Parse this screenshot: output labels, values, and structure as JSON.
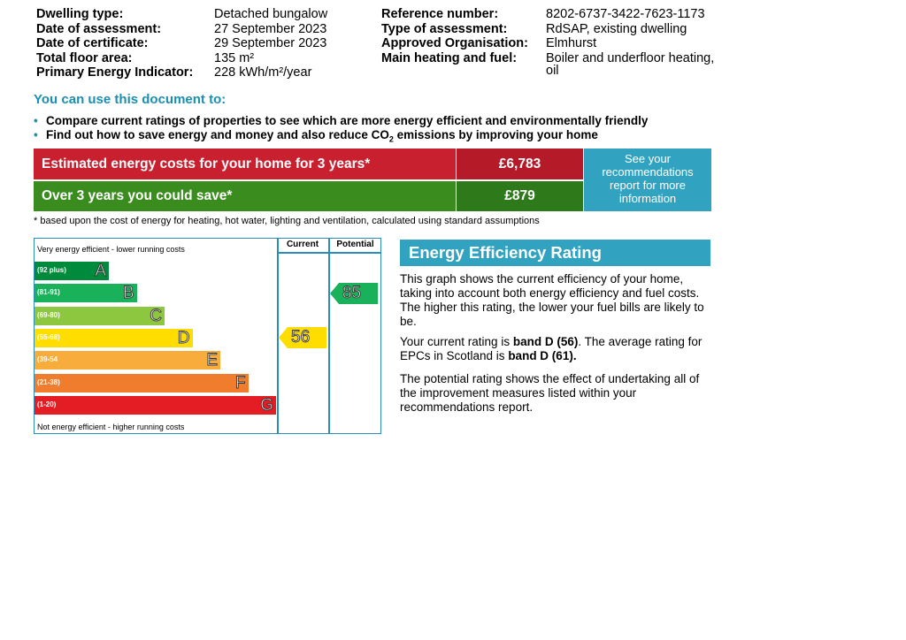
{
  "details_left": [
    {
      "label": "Dwelling type:",
      "value": "Detached bungalow"
    },
    {
      "label": "Date of assessment:",
      "value": "27 September 2023"
    },
    {
      "label": "Date of certificate:",
      "value": "29 September 2023"
    },
    {
      "label": "Total floor area:",
      "value": "135 m²"
    },
    {
      "label": "Primary Energy Indicator:",
      "value": "228 kWh/m²/year"
    }
  ],
  "details_right": [
    {
      "label": "Reference number:",
      "value": "8202-6737-3422-7623-1173"
    },
    {
      "label": "Type of assessment:",
      "value": "RdSAP, existing dwelling"
    },
    {
      "label": "Approved Organisation:",
      "value": "Elmhurst"
    },
    {
      "label": "Main heating and fuel:",
      "value": "Boiler and underfloor heating,",
      "value2": "oil"
    }
  ],
  "use_heading": "You can use this document to:",
  "bullets": [
    {
      "text": "Compare current ratings of properties to see which are more energy efficient and environmentally friendly"
    },
    {
      "pre": "Find out how to save energy and money and also reduce CO",
      "sub": "2",
      "post": " emissions by improving your home"
    }
  ],
  "costs": {
    "estimated_label": "Estimated energy costs for your home for 3 years*",
    "estimated_value": "£6,783",
    "save_label": "Over 3 years you could save*",
    "save_value": "£879",
    "recommendation_text": "See your recommendations report for more information",
    "footnote": "* based upon the cost of energy for heating, hot water, lighting and ventilation, calculated using standard assumptions",
    "colors": {
      "red": "#c8202f",
      "red_dark": "#b51a28",
      "green": "#3a8c1e",
      "green_dark": "#2e7a1a",
      "teal": "#31a3c0"
    }
  },
  "rating_chart": {
    "top_label": "Very energy efficient - lower running costs",
    "bottom_label": "Not energy efficient - higher running costs",
    "col_current": "Current",
    "col_potential": "Potential",
    "bands": [
      {
        "range": "(92 plus)",
        "letter": "A",
        "color": "#008a3c"
      },
      {
        "range": "(81-91)",
        "letter": "B",
        "color": "#19b25a"
      },
      {
        "range": "(69-80)",
        "letter": "C",
        "color": "#8dc63f"
      },
      {
        "range": "(55-68)",
        "letter": "D",
        "color": "#ffdd00"
      },
      {
        "range": "(39-54",
        "letter": "E",
        "color": "#f7ac3b"
      },
      {
        "range": "(21-38)",
        "letter": "F",
        "color": "#ef7d2d"
      },
      {
        "range": "(1-20)",
        "letter": "G",
        "color": "#e31d23"
      }
    ],
    "current": {
      "value": "56",
      "band": "D",
      "color": "#ffdd00"
    },
    "potential": {
      "value": "85",
      "band": "B",
      "color": "#19b25a"
    }
  },
  "rating_panel": {
    "title": "Energy Efficiency Rating",
    "para1": "This graph shows the current efficiency of your home, taking into account both energy efficiency and fuel costs. The higher this rating, the lower your fuel bills are likely to be.",
    "para2_a": "Your current rating is ",
    "para2_b": "band D (56)",
    "para2_c": ". The average rating for EPCs in Scotland is ",
    "para2_d": "band D (61).",
    "para3": "The potential rating shows the effect of undertaking all of the improvement measures listed within your recommendations report."
  }
}
